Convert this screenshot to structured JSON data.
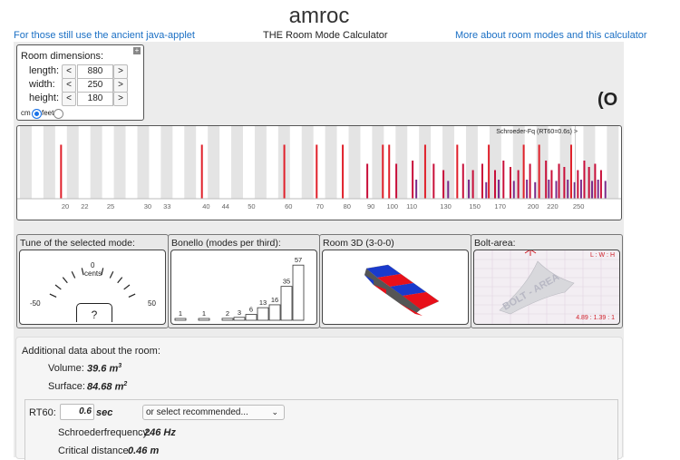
{
  "header": {
    "title": "amroc",
    "subtitle": "THE Room Mode Calculator",
    "left_link": "For those still use the ancient java-applet",
    "right_link": "More about room modes and this calculator"
  },
  "dimensions": {
    "heading": "Room dimensions:",
    "rows": [
      {
        "label": "length:",
        "dec": "<",
        "value": "880",
        "inc": ">"
      },
      {
        "label": "width:",
        "dec": "<",
        "value": "250",
        "inc": ">"
      },
      {
        "label": "height:",
        "dec": "<",
        "value": "180",
        "inc": ">"
      }
    ],
    "unit_cm": "cm",
    "unit_feet": "feet",
    "selected_unit": "cm",
    "collapse_button": "+"
  },
  "logo": {
    "text": "(O",
    "color": "#1f7a2e"
  },
  "chart_data": {
    "type": "bar",
    "xlabel": "",
    "ylabel": "",
    "x_scale": "log",
    "xlim": [
      16,
      300
    ],
    "tick_labels": [
      "20",
      "22",
      "25",
      "30",
      "33",
      "40",
      "44",
      "50",
      "60",
      "70",
      "80",
      "90",
      "100",
      "110",
      "130",
      "150",
      "170",
      "200",
      "220",
      "250"
    ],
    "schroeder_label": "Schroeder-Fq (RT60=0.6s) >",
    "series_colors": {
      "axial": "#e0202a",
      "tangential": "#c8103a",
      "oblique": "#7a2a8a"
    },
    "modes": [
      {
        "f": 19.5,
        "v": 0.85,
        "kind": "axial"
      },
      {
        "f": 39.0,
        "v": 0.85,
        "kind": "axial"
      },
      {
        "f": 58.5,
        "v": 0.85,
        "kind": "axial"
      },
      {
        "f": 68.6,
        "v": 0.85,
        "kind": "axial"
      },
      {
        "f": 78.0,
        "v": 0.85,
        "kind": "axial"
      },
      {
        "f": 95.0,
        "v": 0.85,
        "kind": "axial"
      },
      {
        "f": 98.0,
        "v": 0.85,
        "kind": "axial"
      },
      {
        "f": 117.0,
        "v": 0.85,
        "kind": "axial"
      },
      {
        "f": 137.0,
        "v": 0.85,
        "kind": "axial"
      },
      {
        "f": 160.0,
        "v": 0.85,
        "kind": "axial"
      },
      {
        "f": 190.0,
        "v": 0.85,
        "kind": "axial"
      },
      {
        "f": 205.0,
        "v": 0.85,
        "kind": "axial"
      },
      {
        "f": 240.0,
        "v": 0.85,
        "kind": "axial"
      },
      {
        "f": 88.0,
        "v": 0.55,
        "kind": "tangential"
      },
      {
        "f": 101.5,
        "v": 0.55,
        "kind": "tangential"
      },
      {
        "f": 110.0,
        "v": 0.6,
        "kind": "tangential"
      },
      {
        "f": 122.0,
        "v": 0.55,
        "kind": "tangential"
      },
      {
        "f": 128.0,
        "v": 0.45,
        "kind": "tangential"
      },
      {
        "f": 141.0,
        "v": 0.55,
        "kind": "tangential"
      },
      {
        "f": 148.0,
        "v": 0.45,
        "kind": "tangential"
      },
      {
        "f": 155.0,
        "v": 0.55,
        "kind": "tangential"
      },
      {
        "f": 165.0,
        "v": 0.45,
        "kind": "tangential"
      },
      {
        "f": 172.0,
        "v": 0.6,
        "kind": "tangential"
      },
      {
        "f": 178.0,
        "v": 0.5,
        "kind": "tangential"
      },
      {
        "f": 185.0,
        "v": 0.45,
        "kind": "tangential"
      },
      {
        "f": 196.0,
        "v": 0.55,
        "kind": "tangential"
      },
      {
        "f": 212.0,
        "v": 0.6,
        "kind": "tangential"
      },
      {
        "f": 218.0,
        "v": 0.45,
        "kind": "tangential"
      },
      {
        "f": 226.0,
        "v": 0.55,
        "kind": "tangential"
      },
      {
        "f": 232.0,
        "v": 0.5,
        "kind": "tangential"
      },
      {
        "f": 248.0,
        "v": 0.45,
        "kind": "tangential"
      },
      {
        "f": 256.0,
        "v": 0.6,
        "kind": "tangential"
      },
      {
        "f": 262.0,
        "v": 0.5,
        "kind": "tangential"
      },
      {
        "f": 270.0,
        "v": 0.55,
        "kind": "tangential"
      },
      {
        "f": 278.0,
        "v": 0.45,
        "kind": "tangential"
      },
      {
        "f": 112.0,
        "v": 0.3,
        "kind": "oblique"
      },
      {
        "f": 131.0,
        "v": 0.28,
        "kind": "oblique"
      },
      {
        "f": 145.0,
        "v": 0.3,
        "kind": "oblique"
      },
      {
        "f": 158.0,
        "v": 0.26,
        "kind": "oblique"
      },
      {
        "f": 168.0,
        "v": 0.3,
        "kind": "oblique"
      },
      {
        "f": 181.0,
        "v": 0.28,
        "kind": "oblique"
      },
      {
        "f": 193.0,
        "v": 0.3,
        "kind": "oblique"
      },
      {
        "f": 201.0,
        "v": 0.26,
        "kind": "oblique"
      },
      {
        "f": 215.0,
        "v": 0.3,
        "kind": "oblique"
      },
      {
        "f": 223.0,
        "v": 0.28,
        "kind": "oblique"
      },
      {
        "f": 236.0,
        "v": 0.3,
        "kind": "oblique"
      },
      {
        "f": 244.0,
        "v": 0.26,
        "kind": "oblique"
      },
      {
        "f": 252.0,
        "v": 0.3,
        "kind": "oblique"
      },
      {
        "f": 266.0,
        "v": 0.28,
        "kind": "oblique"
      },
      {
        "f": 274.0,
        "v": 0.3,
        "kind": "oblique"
      },
      {
        "f": 284.0,
        "v": 0.28,
        "kind": "oblique"
      }
    ]
  },
  "tune": {
    "heading": "Tune of the selected mode:",
    "zero": "0",
    "unit": "cents",
    "min": "-50",
    "max": "50",
    "value": "?"
  },
  "bonello": {
    "heading": "Bonello (modes per third):",
    "counts": [
      1,
      0,
      1,
      0,
      2,
      3,
      6,
      13,
      16,
      35,
      57
    ],
    "labels": [
      "1",
      "",
      "1",
      "",
      "2",
      "3",
      "6",
      "13",
      "16",
      "35",
      "57"
    ]
  },
  "room3d": {
    "heading": "Room 3D (3-0-0)"
  },
  "bolt": {
    "heading": "Bolt-area:",
    "top_label": "L : W : H",
    "ratio": "4.89 : 1.39 : 1",
    "watermark": "BOLT - AREA"
  },
  "info": {
    "heading": "Additional data about the room:",
    "volume_label": "Volume:",
    "volume_value": "39.6 m",
    "volume_exp": "3",
    "surface_label": "Surface:",
    "surface_value": "84.68 m",
    "surface_exp": "2",
    "rt60_label": "RT60:",
    "rt60_value": "0.6",
    "rt60_unit": "sec",
    "rt60_select": "or select recommended...",
    "schroeder_label": "Schroederfrequency:",
    "schroeder_value": "246 Hz",
    "critical_label": "Critical distance:",
    "critical_value": "0.46 m"
  }
}
